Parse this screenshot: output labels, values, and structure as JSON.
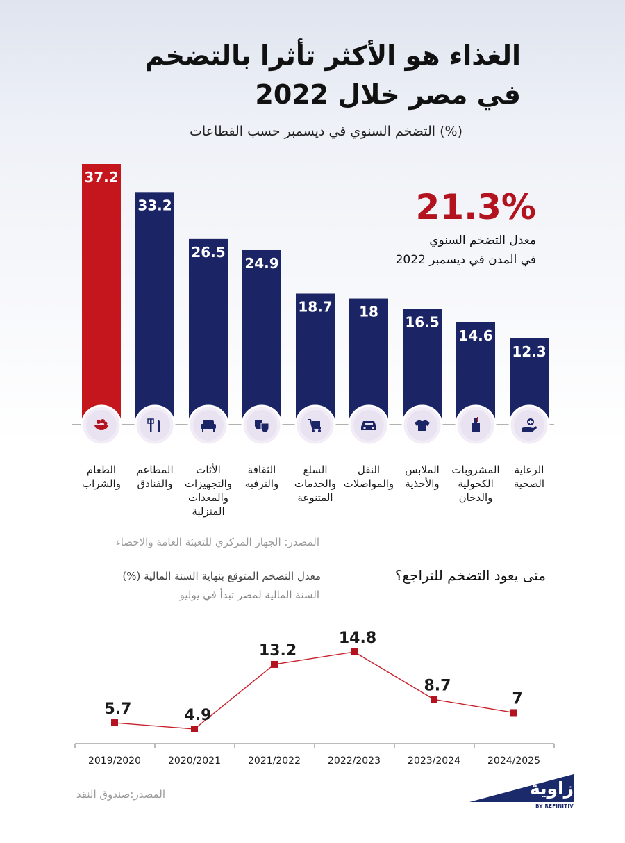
{
  "header": {
    "title_line1": "الغذاء هو الأكثر تأثرا بالتضخم",
    "title_line2": "في مصر خلال 2022",
    "subtitle": "التضخم السنوي في ديسمبر حسب القطاعات (%)"
  },
  "highlight": {
    "value": "21.3%",
    "label_line1": "معدل التضخم السنوي",
    "label_line2": "في المدن في ديسمبر 2022"
  },
  "colors": {
    "accent": "#c4161c",
    "bar": "#1b2566",
    "icon_bg": "#e9e3f1",
    "line": "#c8232c"
  },
  "chart_data": [
    {
      "type": "bar",
      "title": "التضخم السنوي في ديسمبر حسب القطاعات (%)",
      "categories": [
        "الطعام والشراب",
        "المطاعم والفنادق",
        "الأثاث والتجهيزات والمعدات المنزلية",
        "الثقافة والترفيه",
        "السلع والخدمات المتنوعة",
        "النقل والمواصلات",
        "الملابس والأحذية",
        "المشروبات الكحولية والدخان",
        "الرعاية الصحية"
      ],
      "category_lines": [
        [
          "الطعام",
          "والشراب"
        ],
        [
          "المطاعم",
          "والفنادق"
        ],
        [
          "الأثاث",
          "والتجهيزات",
          "والمعدات",
          "المنزلية"
        ],
        [
          "الثقافة",
          "والترفيه"
        ],
        [
          "السلع",
          "والخدمات",
          "المتنوعة"
        ],
        [
          "النقل",
          "والمواصلات"
        ],
        [
          "الملابس",
          "والأحذية"
        ],
        [
          "المشروبات",
          "الكحولية",
          "والدخان"
        ],
        [
          "الرعاية",
          "الصحية"
        ]
      ],
      "values": [
        37.2,
        33.2,
        26.5,
        24.9,
        18.7,
        18,
        16.5,
        14.6,
        12.3
      ],
      "value_labels": [
        "37.2",
        "33.2",
        "26.5",
        "24.9",
        "18.7",
        "18",
        "16.5",
        "14.6",
        "12.3"
      ],
      "highlight_index": 0,
      "icons": [
        "food-bowl-icon",
        "fork-knife-icon",
        "armchair-icon",
        "theater-masks-icon",
        "shopping-cart-icon",
        "car-icon",
        "tshirt-icon",
        "bottle-icon",
        "health-hand-icon"
      ],
      "ylim": [
        0,
        37.2
      ]
    },
    {
      "type": "line",
      "title": "متى يعود التضخم للتراجع؟",
      "series_name": "معدل التضخم المتوقع بنهاية السنة المالية (%)",
      "note": "السنة المالية لمصر تبدأ في يوليو",
      "x": [
        "2019/2020",
        "2020/2021",
        "2021/2022",
        "2022/2023",
        "2023/2024",
        "2024/2025"
      ],
      "values": [
        5.7,
        4.9,
        13.2,
        14.8,
        8.7,
        7
      ],
      "value_labels": [
        "5.7",
        "4.9",
        "13.2",
        "14.8",
        "8.7",
        "7"
      ],
      "ylim": [
        4.9,
        14.8
      ]
    }
  ],
  "sources": {
    "bar_source": "المصدر: الجهاز المركزي للتعبئة العامة والاحصاء",
    "line_source": "المصدر:صندوق النقد"
  },
  "logo": {
    "text": "زاوية",
    "sub": "BY REFINITIV"
  }
}
